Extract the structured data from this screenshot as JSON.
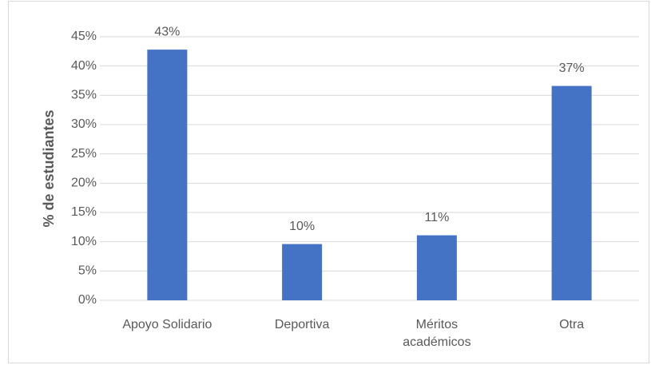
{
  "chart_data": {
    "type": "bar",
    "y_label": "% de estudiantes",
    "categories": [
      "Apoyo Solidario",
      "Deportiva",
      "Méritos académicos",
      "Otra"
    ],
    "values": [
      42.8,
      9.6,
      11.1,
      36.6
    ],
    "value_labels": [
      "43%",
      "10%",
      "11%",
      "37%"
    ],
    "color": "#4472c4",
    "ylim": [
      0,
      45
    ],
    "yticks": [
      {
        "value": 0,
        "label": "0%"
      },
      {
        "value": 5,
        "label": "5%"
      },
      {
        "value": 10,
        "label": "10%"
      },
      {
        "value": 15,
        "label": "15%"
      },
      {
        "value": 20,
        "label": "20%"
      },
      {
        "value": 25,
        "label": "25%"
      },
      {
        "value": 30,
        "label": "30%"
      },
      {
        "value": 35,
        "label": "35%"
      },
      {
        "value": 40,
        "label": "40%"
      },
      {
        "value": 45,
        "label": "45%"
      }
    ],
    "grid": true
  }
}
